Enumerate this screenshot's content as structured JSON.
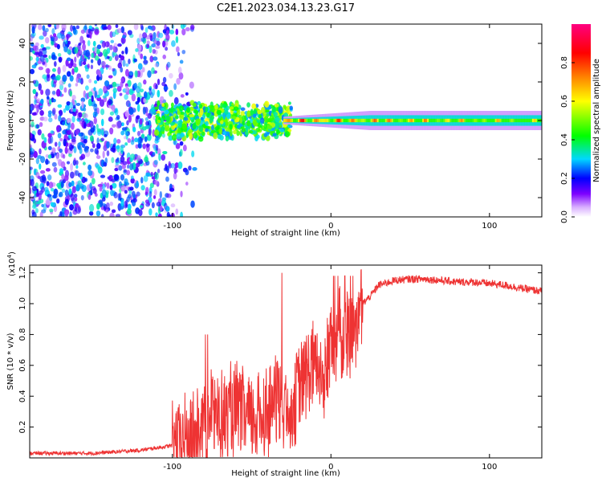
{
  "title": "C2E1.2023.034.13.23.G17",
  "chart_data": [
    {
      "type": "heatmap",
      "xlabel": "Height of straight line (km)",
      "ylabel": "Frequency (Hz)",
      "xlim": [
        -190,
        133
      ],
      "ylim": [
        -50,
        50
      ],
      "x_ticks": [
        -100,
        0,
        100
      ],
      "y_ticks": [
        -40,
        -20,
        0,
        20,
        40
      ],
      "colorbar": {
        "label": "Normalized spectral amplitude",
        "range": [
          0,
          1
        ],
        "ticks": [
          "0.0",
          "0.2",
          "0.4",
          "0.6",
          "0.8"
        ],
        "stops": [
          "#ffffff",
          "#7d00ff",
          "#0000ff",
          "#00d8ff",
          "#00ff00",
          "#ffff00",
          "#ff8800",
          "#ff0000",
          "#ff0080"
        ]
      },
      "carrier": {
        "x_start": -30,
        "x_end": 133,
        "frequency": 0,
        "band_halfwidth": [
          2,
          5
        ],
        "peak_amplitude": 0.9
      },
      "noise_region": {
        "x_start": -190,
        "x_end": -85,
        "amplitude": [
          0.05,
          0.35
        ]
      },
      "transition_region": {
        "x_start": -110,
        "x_end": -25,
        "frequency_halfwidth": 10,
        "amplitude": [
          0.25,
          0.6
        ]
      }
    },
    {
      "type": "line",
      "xlabel": "Height of straight line (km)",
      "ylabel": "SNR (10 * v/v)",
      "y_multiplier": "(x10",
      "y_multiplier_exp": "4",
      "y_multiplier_close": ")",
      "xlim": [
        -190,
        133
      ],
      "ylim": [
        0,
        1.25
      ],
      "x_ticks": [
        -100,
        0,
        100
      ],
      "y_ticks": [
        "0.2",
        "0.4",
        "0.6",
        "0.8",
        "1.0",
        "1.2"
      ],
      "color": "#ee3333",
      "series": [
        {
          "x": [
            -190,
            -150,
            -120,
            -100,
            -90,
            -80,
            -75,
            -70,
            -60,
            -50,
            -40,
            -35,
            -30,
            -25,
            -20,
            -15,
            -10,
            -5,
            0,
            5,
            10,
            15,
            20,
            25,
            30,
            40,
            50,
            60,
            70,
            80,
            90,
            100,
            110,
            120,
            133
          ],
          "y": [
            0.03,
            0.03,
            0.05,
            0.08,
            0.12,
            0.2,
            0.3,
            0.25,
            0.3,
            0.25,
            0.3,
            0.4,
            0.3,
            0.35,
            0.45,
            0.55,
            0.6,
            0.5,
            0.75,
            0.8,
            0.75,
            0.9,
            1.0,
            1.05,
            1.12,
            1.15,
            1.16,
            1.16,
            1.15,
            1.14,
            1.14,
            1.13,
            1.12,
            1.1,
            1.08
          ]
        }
      ]
    }
  ]
}
